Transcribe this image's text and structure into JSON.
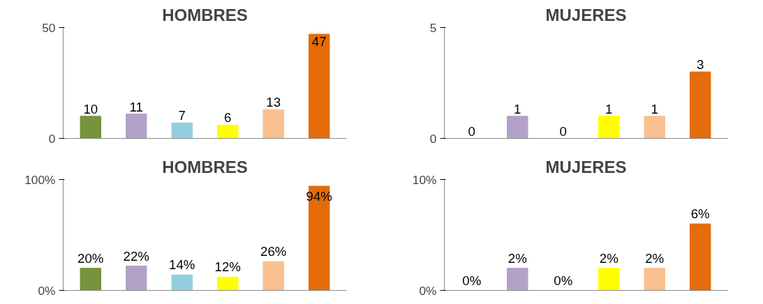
{
  "chart_data": [
    {
      "type": "bar",
      "title": "HOMBRES",
      "categories": [
        null,
        null,
        null,
        null,
        null,
        null
      ],
      "values": [
        10,
        11,
        7,
        6,
        13,
        47
      ],
      "colors": [
        "#77933c",
        "#b3a2c7",
        "#93cddd",
        "#ffff00",
        "#fac090",
        "#e46c0a"
      ],
      "ylim": [
        0,
        50
      ],
      "yticks": [
        0,
        50
      ],
      "data_labels": true,
      "grid": false,
      "tick_labels": "y"
    },
    {
      "type": "bar",
      "title": "MUJERES",
      "categories": [
        null,
        null,
        null,
        null,
        null,
        null
      ],
      "values": [
        0,
        1,
        0,
        1,
        1,
        3
      ],
      "colors": [
        "#77933c",
        "#b3a2c7",
        "#93cddd",
        "#ffff00",
        "#fac090",
        "#e46c0a"
      ],
      "ylim": [
        0,
        5
      ],
      "yticks": [
        0,
        5
      ],
      "data_labels": true,
      "grid": false,
      "tick_labels": "y"
    },
    {
      "type": "bar",
      "title": "HOMBRES",
      "categories": [
        null,
        null,
        null,
        null,
        null,
        null
      ],
      "values": [
        20,
        22,
        14,
        12,
        26,
        94
      ],
      "value_labels": [
        "20%",
        "22%",
        "14%",
        "12%",
        "26%",
        "94%"
      ],
      "colors": [
        "#77933c",
        "#b3a2c7",
        "#93cddd",
        "#ffff00",
        "#fac090",
        "#e46c0a"
      ],
      "ylim": [
        0,
        100
      ],
      "yticks": [
        {
          "value": 0,
          "label": "0%"
        },
        {
          "value": 100,
          "label": "100%"
        }
      ],
      "grid": false,
      "tick_labels": "y"
    },
    {
      "type": "bar",
      "title": "MUJERES",
      "categories": [
        null,
        null,
        null,
        null,
        null,
        null
      ],
      "values": [
        0,
        2,
        0,
        2,
        2,
        6
      ],
      "value_labels": [
        "0%",
        "2%",
        "0%",
        "2%",
        "2%",
        "6%"
      ],
      "colors": [
        "#77933c",
        "#b3a2c7",
        "#93cddd",
        "#ffff00",
        "#fac090",
        "#e46c0a"
      ],
      "ylim": [
        0,
        10
      ],
      "yticks": [
        {
          "value": 0,
          "label": "0%"
        },
        {
          "value": 10,
          "label": "10%"
        }
      ],
      "grid": false,
      "tick_labels": "y"
    }
  ]
}
